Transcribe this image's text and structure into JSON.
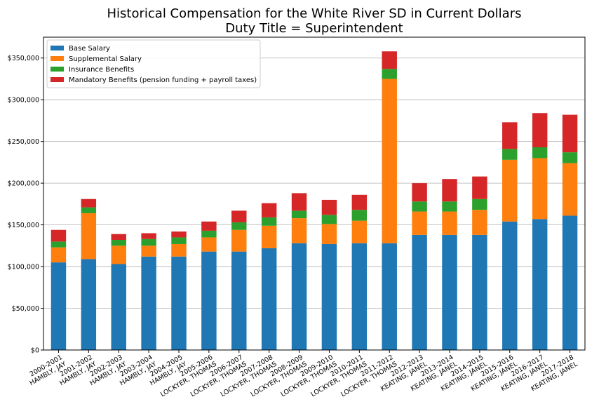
{
  "chart_data": {
    "type": "bar",
    "stacked": true,
    "title": "Historical Compensation for the White River SD in Current Dollars",
    "subtitle": "Duty Title = Superintendent",
    "xlabel": "",
    "ylabel": "",
    "ylim": [
      0,
      375000
    ],
    "yticks": [
      0,
      50000,
      100000,
      150000,
      200000,
      250000,
      300000,
      350000
    ],
    "ytick_labels": [
      "$0",
      "$50,000",
      "$100,000",
      "$150,000",
      "$200,000",
      "$250,000",
      "$300,000",
      "$350,000"
    ],
    "grid": "horizontal",
    "legend_position": "top-left",
    "categories": [
      "2000-2001\nHAMBLY, JAY",
      "2001-2002\nHAMBLY, JAY",
      "2002-2003\nHAMBLY, JAY",
      "2003-2004\nHAMBLY, JAY",
      "2004-2005\nHAMBLY, JAY",
      "2005-2006\nLOCKYER, THOMAS",
      "2006-2007\nLOCKYER, THOMAS",
      "2007-2008\nLOCKYER, THOMAS",
      "2008-2009\nLOCKYER, THOMAS",
      "2009-2010\nLOCKYER, THOMAS",
      "2010-2011\nLOCKYER, THOMAS",
      "2011-2012\nLOCKYER, THOMAS",
      "2012-2013\nKEATING, JANEL",
      "2013-2014\nKEATING, JANEL",
      "2014-2015\nKEATING, JANEL",
      "2015-2016\nKEATING, JANEL",
      "2016-2017\nKEATING, JANEL",
      "2017-2018\nKEATING, JANEL"
    ],
    "series": [
      {
        "name": "Base Salary",
        "color": "#1f77b4",
        "values": [
          105000,
          109000,
          103000,
          112000,
          112000,
          118000,
          118000,
          122000,
          128000,
          127000,
          128000,
          128000,
          138000,
          138000,
          138000,
          154000,
          157000,
          161000
        ]
      },
      {
        "name": "Supplemental Salary",
        "color": "#ff7f0e",
        "values": [
          18000,
          55000,
          22000,
          13000,
          15000,
          17000,
          26000,
          27000,
          30000,
          24000,
          27000,
          197000,
          28000,
          28000,
          30000,
          74000,
          73000,
          63000
        ]
      },
      {
        "name": "Insurance Benefits",
        "color": "#2ca02c",
        "values": [
          7000,
          7000,
          7000,
          8000,
          8000,
          8000,
          9000,
          10000,
          9000,
          11000,
          13000,
          12000,
          12000,
          12000,
          13000,
          13000,
          13000,
          13000
        ]
      },
      {
        "name": "Mandatory Benefits (pension funding + payroll taxes)",
        "color": "#d62728",
        "values": [
          14000,
          10000,
          7000,
          7000,
          7000,
          11000,
          14000,
          17000,
          21000,
          18000,
          18000,
          21000,
          22000,
          27000,
          27000,
          32000,
          41000,
          45000
        ]
      }
    ]
  }
}
